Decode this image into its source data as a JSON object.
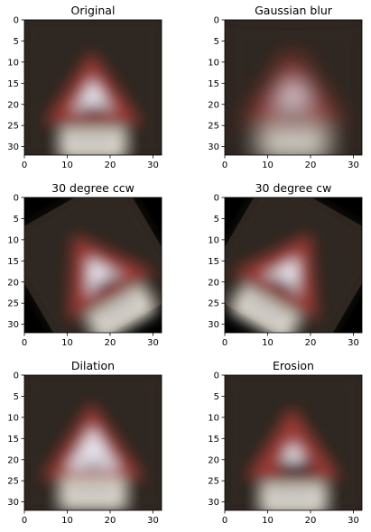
{
  "figure": {
    "panels": [
      {
        "title": "Original",
        "variant": "original"
      },
      {
        "title": "Gaussian blur",
        "variant": "blur"
      },
      {
        "title": "30 degree ccw",
        "variant": "ccw"
      },
      {
        "title": "30 degree cw",
        "variant": "cw"
      },
      {
        "title": "Dilation",
        "variant": "dilation"
      },
      {
        "title": "Erosion",
        "variant": "erosion"
      }
    ]
  },
  "chart_data": [
    {
      "type": "image",
      "title": "Original",
      "image_size": [
        32,
        32
      ],
      "xlim": [
        0,
        32
      ],
      "ylim": [
        32,
        0
      ],
      "xticks": [
        0,
        10,
        20,
        30
      ],
      "yticks": [
        0,
        5,
        10,
        15,
        20,
        25,
        30
      ]
    },
    {
      "type": "image",
      "title": "Gaussian blur",
      "image_size": [
        32,
        32
      ],
      "xlim": [
        0,
        32
      ],
      "ylim": [
        32,
        0
      ],
      "xticks": [
        0,
        10,
        20,
        30
      ],
      "yticks": [
        0,
        5,
        10,
        15,
        20,
        25,
        30
      ]
    },
    {
      "type": "image",
      "title": "30 degree ccw",
      "image_size": [
        32,
        32
      ],
      "xlim": [
        0,
        32
      ],
      "ylim": [
        32,
        0
      ],
      "xticks": [
        0,
        10,
        20,
        30
      ],
      "yticks": [
        0,
        5,
        10,
        15,
        20,
        25,
        30
      ]
    },
    {
      "type": "image",
      "title": "30 degree cw",
      "image_size": [
        32,
        32
      ],
      "xlim": [
        0,
        32
      ],
      "ylim": [
        32,
        0
      ],
      "xticks": [
        0,
        10,
        20,
        30
      ],
      "yticks": [
        0,
        5,
        10,
        15,
        20,
        25,
        30
      ]
    },
    {
      "type": "image",
      "title": "Dilation",
      "image_size": [
        32,
        32
      ],
      "xlim": [
        0,
        32
      ],
      "ylim": [
        32,
        0
      ],
      "xticks": [
        0,
        10,
        20,
        30
      ],
      "yticks": [
        0,
        5,
        10,
        15,
        20,
        25,
        30
      ]
    },
    {
      "type": "image",
      "title": "Erosion",
      "image_size": [
        32,
        32
      ],
      "xlim": [
        0,
        32
      ],
      "ylim": [
        32,
        0
      ],
      "xticks": [
        0,
        10,
        20,
        30
      ],
      "yticks": [
        0,
        5,
        10,
        15,
        20,
        25,
        30
      ]
    }
  ],
  "colors": {
    "background": "#2d2420",
    "sign_red": "#9a3a34",
    "sign_white": "#e6e2ea",
    "plate": "#dcd8cc",
    "symbol": "#2a2a2c",
    "rotation_fill": "#000000",
    "axis": "#000000"
  }
}
